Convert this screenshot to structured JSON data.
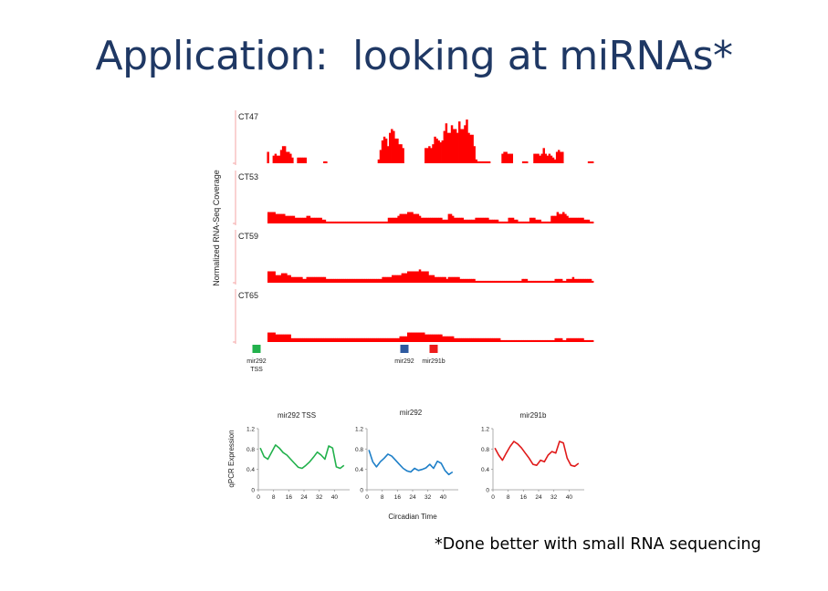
{
  "slide": {
    "title": "Application:  looking at miRNAs*",
    "footnote": "*Done better with small RNA sequencing"
  },
  "chart_data": [
    {
      "type": "area",
      "ylabel": "Normalized RNA-Seq Coverage",
      "tracks": [
        {
          "name": "CT47",
          "values": [
            0,
            0,
            0,
            0,
            0,
            0,
            0,
            0,
            6,
            0,
            0,
            4,
            5,
            4,
            4,
            7,
            9,
            9,
            6,
            6,
            5,
            3,
            0,
            0,
            3,
            3,
            3,
            3,
            3,
            0,
            0,
            0,
            0,
            0,
            0,
            0,
            0,
            0,
            1,
            1,
            0,
            0,
            0,
            0,
            0,
            0,
            0,
            0,
            0,
            0,
            0,
            0,
            0,
            0,
            0,
            0,
            0,
            0,
            0,
            0,
            0,
            0,
            0,
            0,
            0,
            0,
            0,
            2,
            7,
            12,
            14,
            13,
            9,
            16,
            18,
            17,
            13,
            13,
            10,
            10,
            8,
            0,
            0,
            0,
            0,
            0,
            0,
            0,
            0,
            0,
            0,
            0,
            8,
            8,
            9,
            8,
            10,
            14,
            13,
            12,
            11,
            12,
            17,
            21,
            16,
            16,
            20,
            18,
            18,
            16,
            22,
            18,
            18,
            20,
            23,
            16,
            15,
            15,
            9,
            2,
            1,
            1,
            1,
            1,
            1,
            1,
            1,
            0,
            0,
            0,
            0,
            0,
            0,
            5,
            6,
            6,
            5,
            5,
            5,
            0,
            0,
            0,
            0,
            0,
            1,
            1,
            1,
            0,
            0,
            0,
            5,
            5,
            5,
            4,
            5,
            8,
            5,
            4,
            5,
            4,
            3,
            2,
            6,
            7,
            6,
            6,
            0,
            0,
            0,
            0,
            0,
            0,
            0,
            0,
            0,
            0,
            0,
            0,
            0,
            1,
            1,
            1
          ]
        },
        {
          "name": "CT53",
          "values": [
            0,
            0,
            0,
            0,
            0,
            0,
            0,
            0,
            6,
            6,
            6,
            6,
            5,
            5,
            5,
            5,
            5,
            4,
            4,
            4,
            4,
            4,
            3,
            3,
            3,
            3,
            3,
            3,
            4,
            4,
            3,
            3,
            3,
            3,
            3,
            3,
            2,
            2,
            1,
            1,
            1,
            1,
            1,
            1,
            1,
            1,
            1,
            1,
            1,
            1,
            1,
            1,
            1,
            1,
            1,
            1,
            1,
            1,
            1,
            1,
            1,
            1,
            1,
            1,
            1,
            1,
            1,
            1,
            1,
            1,
            3,
            3,
            3,
            3,
            3,
            4,
            5,
            5,
            5,
            5,
            6,
            6,
            6,
            5,
            5,
            5,
            4,
            3,
            3,
            3,
            3,
            3,
            3,
            3,
            3,
            3,
            3,
            3,
            2,
            2,
            2,
            5,
            5,
            4,
            3,
            3,
            3,
            3,
            3,
            2,
            2,
            2,
            2,
            2,
            2,
            3,
            3,
            3,
            3,
            3,
            3,
            3,
            2,
            2,
            2,
            2,
            2,
            1,
            1,
            1,
            1,
            1,
            3,
            3,
            3,
            2,
            2,
            1,
            1,
            1,
            1,
            1,
            1,
            3,
            3,
            3,
            2,
            2,
            2,
            1,
            1,
            1,
            1,
            1,
            4,
            4,
            4,
            6,
            5,
            5,
            6,
            5,
            4,
            3,
            3,
            3,
            3,
            3,
            3,
            3,
            3,
            2,
            2,
            2,
            1,
            1
          ]
        },
        {
          "name": "CT59",
          "values": [
            0,
            0,
            0,
            0,
            0,
            0,
            0,
            0,
            6,
            6,
            6,
            6,
            4,
            4,
            4,
            5,
            5,
            5,
            4,
            4,
            3,
            3,
            3,
            3,
            3,
            3,
            2,
            2,
            3,
            3,
            3,
            3,
            3,
            3,
            3,
            3,
            3,
            3,
            2,
            2,
            2,
            2,
            2,
            2,
            2,
            2,
            2,
            2,
            2,
            2,
            2,
            2,
            2,
            2,
            2,
            2,
            2,
            2,
            2,
            2,
            2,
            2,
            2,
            2,
            2,
            2,
            2,
            3,
            3,
            3,
            3,
            3,
            4,
            4,
            4,
            4,
            4,
            5,
            5,
            5,
            6,
            6,
            6,
            6,
            6,
            6,
            7,
            6,
            6,
            6,
            6,
            4,
            4,
            4,
            3,
            3,
            3,
            3,
            3,
            3,
            2,
            3,
            3,
            3,
            3,
            3,
            3,
            2,
            2,
            2,
            2,
            2,
            2,
            2,
            2,
            1,
            1,
            1,
            1,
            1,
            1,
            1,
            1,
            1,
            1,
            1,
            1,
            1,
            1,
            1,
            1,
            1,
            1,
            1,
            1,
            1,
            1,
            1,
            1,
            2,
            2,
            2,
            1,
            1,
            1,
            1,
            1,
            1,
            1,
            1,
            1,
            1,
            1,
            1,
            1,
            1,
            2,
            2,
            2,
            2,
            1,
            1,
            2,
            2,
            2,
            3,
            2,
            2,
            2,
            2,
            2,
            2,
            2,
            2,
            2,
            1
          ]
        },
        {
          "name": "CT65",
          "values": [
            0,
            0,
            0,
            0,
            0,
            0,
            0,
            0,
            5,
            5,
            5,
            5,
            4,
            4,
            4,
            4,
            4,
            4,
            4,
            4,
            2,
            2,
            2,
            2,
            2,
            2,
            2,
            2,
            2,
            2,
            2,
            2,
            2,
            2,
            2,
            2,
            2,
            2,
            2,
            2,
            2,
            2,
            2,
            2,
            2,
            2,
            2,
            2,
            2,
            2,
            2,
            2,
            2,
            2,
            2,
            2,
            2,
            2,
            2,
            2,
            2,
            2,
            2,
            2,
            2,
            2,
            2,
            2,
            2,
            2,
            2,
            2,
            2,
            2,
            2,
            2,
            3,
            3,
            3,
            3,
            5,
            5,
            5,
            5,
            5,
            5,
            5,
            5,
            5,
            4,
            4,
            4,
            4,
            4,
            4,
            4,
            4,
            4,
            3,
            3,
            3,
            3,
            3,
            3,
            2,
            2,
            2,
            2,
            2,
            2,
            2,
            2,
            2,
            2,
            2,
            2,
            2,
            2,
            2,
            2,
            2,
            2,
            2,
            2,
            2,
            2,
            2,
            2,
            1,
            1,
            1,
            1,
            1,
            1,
            1,
            1,
            1,
            1,
            1,
            1,
            1,
            1,
            1,
            1,
            1,
            1,
            1,
            1,
            1,
            1,
            1,
            1,
            1,
            1,
            1,
            1,
            2,
            2,
            2,
            2,
            1,
            1,
            2,
            2,
            2,
            2,
            2,
            2,
            2,
            2,
            2,
            1,
            1,
            1,
            1,
            1
          ]
        }
      ],
      "markers": [
        {
          "label": "mir292\nTSS",
          "label_lines": [
            "mir292",
            "TSS"
          ],
          "color": "#22b14c"
        },
        {
          "label": "mir292",
          "label_lines": [
            "mir292"
          ],
          "color": "#2e5aa0"
        },
        {
          "label": "mir291b",
          "label_lines": [
            "mir291b"
          ],
          "color": "#ee1c1c"
        }
      ],
      "colors": {
        "coverage": "#ff0000",
        "axis": "#f4a6a6"
      }
    },
    {
      "type": "line",
      "title": "mir292 TSS",
      "ylabel": "qPCR Expression",
      "xlabel": "",
      "x": [
        1,
        3,
        5,
        7,
        9,
        11,
        13,
        15,
        17,
        19,
        21,
        23,
        25,
        27,
        29,
        31,
        33,
        35,
        37,
        39,
        41,
        43,
        45
      ],
      "values": [
        0.82,
        0.65,
        0.6,
        0.74,
        0.88,
        0.82,
        0.73,
        0.68,
        0.6,
        0.52,
        0.44,
        0.42,
        0.48,
        0.55,
        0.64,
        0.74,
        0.68,
        0.6,
        0.86,
        0.82,
        0.45,
        0.42,
        0.48
      ],
      "color": "#22b14c",
      "xticks": [
        "0",
        "8",
        "16",
        "24",
        "32",
        "40"
      ],
      "yticks": [
        "0",
        "0.4",
        "0.8",
        "1.2"
      ],
      "xlim": [
        0,
        48
      ],
      "ylim": [
        0,
        1.2
      ]
    },
    {
      "type": "line",
      "title": "mir292",
      "xlabel": "Circadian Time",
      "x": [
        1,
        3,
        5,
        7,
        9,
        11,
        13,
        15,
        17,
        19,
        21,
        23,
        25,
        27,
        29,
        31,
        33,
        35,
        37,
        39,
        41,
        43,
        45
      ],
      "values": [
        0.78,
        0.55,
        0.45,
        0.55,
        0.62,
        0.7,
        0.66,
        0.58,
        0.5,
        0.42,
        0.37,
        0.35,
        0.42,
        0.38,
        0.4,
        0.43,
        0.5,
        0.42,
        0.56,
        0.52,
        0.38,
        0.3,
        0.35
      ],
      "color": "#1e7fc8",
      "xticks": [
        "0",
        "8",
        "16",
        "24",
        "32",
        "40"
      ],
      "yticks": [
        "0",
        "0.4",
        "0.8",
        "1.2"
      ],
      "xlim": [
        0,
        48
      ],
      "ylim": [
        0,
        1.2
      ]
    },
    {
      "type": "line",
      "title": "mir291b",
      "xlabel": "",
      "x": [
        1,
        3,
        5,
        7,
        9,
        11,
        13,
        15,
        17,
        19,
        21,
        23,
        25,
        27,
        29,
        31,
        33,
        35,
        37,
        39,
        41,
        43,
        45
      ],
      "values": [
        0.82,
        0.68,
        0.58,
        0.72,
        0.85,
        0.95,
        0.9,
        0.82,
        0.72,
        0.62,
        0.5,
        0.48,
        0.58,
        0.55,
        0.68,
        0.75,
        0.72,
        0.95,
        0.92,
        0.62,
        0.48,
        0.46,
        0.52
      ],
      "color": "#e01a1a",
      "xticks": [
        "0",
        "8",
        "16",
        "24",
        "32",
        "40"
      ],
      "yticks": [
        "0",
        "0.4",
        "0.8",
        "1.2"
      ],
      "xlim": [
        0,
        48
      ],
      "ylim": [
        0,
        1.2
      ]
    }
  ]
}
